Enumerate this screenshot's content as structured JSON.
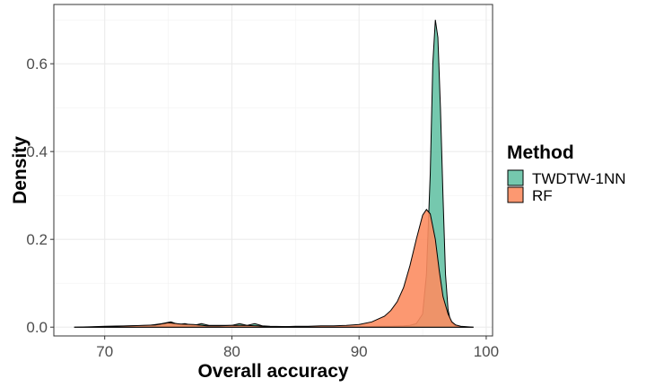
{
  "chart_data": {
    "type": "area",
    "subtype": "density",
    "title": "",
    "xlabel": "Overall accuracy",
    "ylabel": "Density",
    "xlim": [
      66,
      100.5
    ],
    "ylim": [
      -0.02,
      0.735
    ],
    "x_ticks": [
      70,
      80,
      90,
      100
    ],
    "y_ticks": [
      0.0,
      0.2,
      0.4,
      0.6
    ],
    "y_tick_labels": [
      "0.0",
      "0.2",
      "0.4",
      "0.6"
    ],
    "grid": true,
    "legend": {
      "title": "Method",
      "placement": "right",
      "entries": [
        "TWDTW-1NN",
        "RF"
      ]
    },
    "series": [
      {
        "name": "TWDTW-1NN",
        "color": "#66c2a5",
        "x": [
          67.6,
          69,
          70,
          72,
          73.5,
          74.5,
          75.2,
          75.8,
          76.3,
          77,
          77.6,
          78.2,
          79,
          80,
          80.6,
          81.2,
          81.8,
          82.4,
          83,
          85,
          87,
          88.5,
          89.5,
          90.5,
          91.5,
          92.5,
          93.5,
          94,
          94.5,
          95,
          95.3,
          95.6,
          95.8,
          96,
          96.2,
          96.4,
          96.6,
          96.8,
          97,
          97.2,
          97.5,
          98,
          99
        ],
        "y": [
          0.0,
          0.001,
          0.002,
          0.003,
          0.004,
          0.008,
          0.012,
          0.006,
          0.008,
          0.004,
          0.008,
          0.004,
          0.004,
          0.004,
          0.008,
          0.004,
          0.008,
          0.003,
          0.002,
          0.001,
          0.001,
          0.001,
          0.001,
          0.001,
          0.002,
          0.002,
          0.003,
          0.004,
          0.008,
          0.03,
          0.12,
          0.35,
          0.6,
          0.7,
          0.66,
          0.5,
          0.3,
          0.12,
          0.04,
          0.012,
          0.004,
          0.001,
          0.0
        ]
      },
      {
        "name": "RF",
        "color": "#fc8d62",
        "x": [
          67.6,
          70,
          72,
          74,
          75,
          76,
          77,
          78,
          79,
          80,
          81,
          82,
          83,
          84,
          85,
          86,
          87,
          88,
          89,
          90,
          91,
          92,
          92.5,
          93,
          93.5,
          94,
          94.5,
          95,
          95.3,
          95.6,
          96,
          96.3,
          96.6,
          97,
          97.3,
          97.6,
          98,
          98.5,
          99
        ],
        "y": [
          0.0,
          0.001,
          0.003,
          0.005,
          0.01,
          0.007,
          0.006,
          0.003,
          0.003,
          0.004,
          0.004,
          0.003,
          0.001,
          0.001,
          0.002,
          0.002,
          0.003,
          0.003,
          0.004,
          0.006,
          0.012,
          0.025,
          0.038,
          0.058,
          0.09,
          0.14,
          0.2,
          0.255,
          0.268,
          0.258,
          0.2,
          0.13,
          0.07,
          0.03,
          0.012,
          0.005,
          0.002,
          0.001,
          0.0
        ]
      }
    ]
  }
}
